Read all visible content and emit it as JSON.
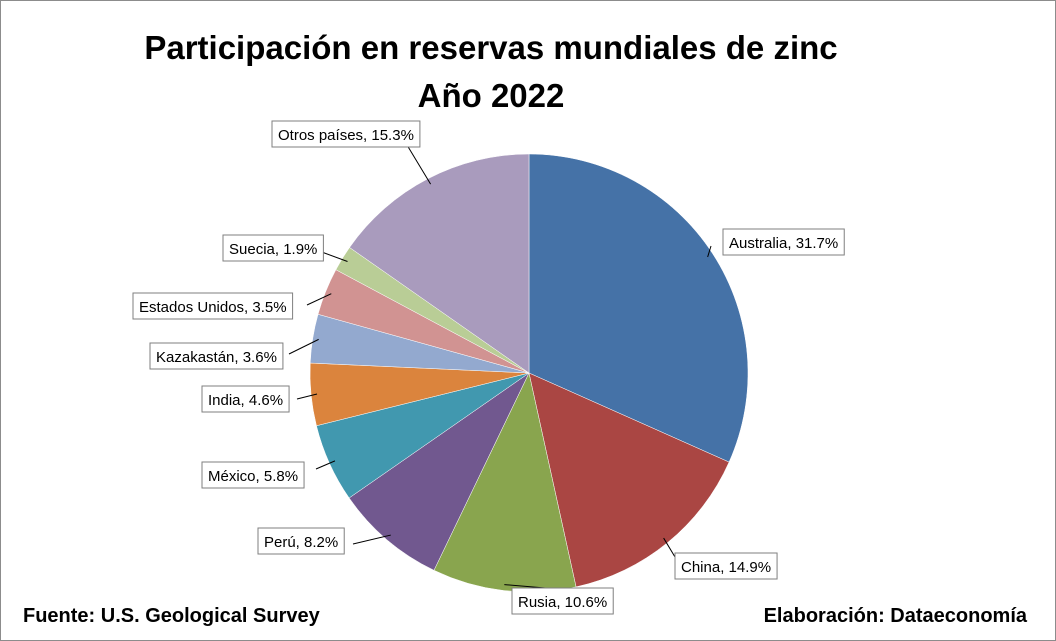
{
  "chart_data": {
    "type": "pie",
    "title": "Participación en reservas mundiales de zinc",
    "subtitle": "Año 2022",
    "start_angle_deg": 0,
    "direction": "clockwise",
    "slices": [
      {
        "label": "Australia",
        "value": 31.7,
        "display": "Australia, 31.7%",
        "color": "#4572A7"
      },
      {
        "label": "China",
        "value": 14.9,
        "display": "China, 14.9%",
        "color": "#AA4643"
      },
      {
        "label": "Rusia",
        "value": 10.6,
        "display": "Rusia, 10.6%",
        "color": "#89A54E"
      },
      {
        "label": "Perú",
        "value": 8.2,
        "display": "Perú, 8.2%",
        "color": "#71588F"
      },
      {
        "label": "México",
        "value": 5.8,
        "display": "México, 5.8%",
        "color": "#4198AF"
      },
      {
        "label": "India",
        "value": 4.6,
        "display": "India, 4.6%",
        "color": "#DB843D"
      },
      {
        "label": "Kazakastán",
        "value": 3.6,
        "display": "Kazakastán, 3.6%",
        "color": "#93A9CF"
      },
      {
        "label": "Estados Unidos",
        "value": 3.5,
        "display": "Estados Unidos, 3.5%",
        "color": "#D19392"
      },
      {
        "label": "Suecia",
        "value": 1.9,
        "display": "Suecia, 1.9%",
        "color": "#B9CD96"
      },
      {
        "label": "Otros países",
        "value": 15.3,
        "display": "Otros países, 15.3%",
        "color": "#A99BBD"
      }
    ]
  },
  "footer": {
    "source": "Fuente: U.S. Geological Survey",
    "credit": "Elaboración: Dataeconomía"
  }
}
